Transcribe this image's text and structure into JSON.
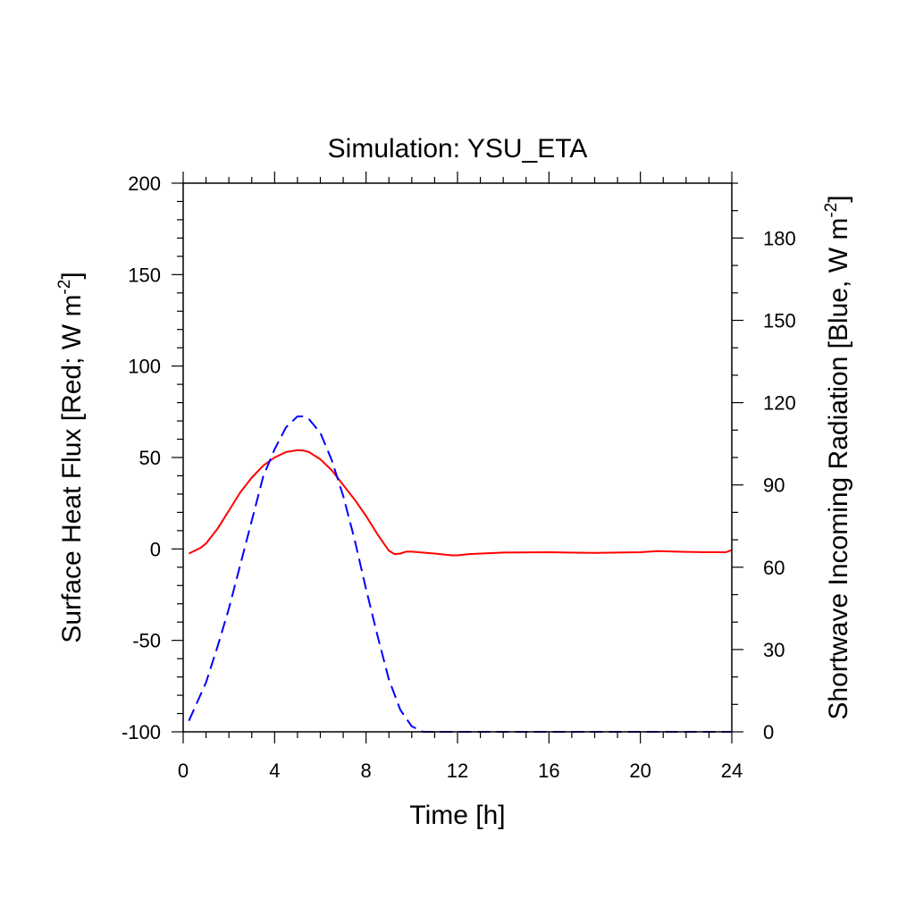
{
  "chart_data": {
    "type": "line",
    "title": "Simulation: YSU_ETA",
    "xlabel": "Time [h]",
    "ylabel_left": {
      "text": "Surface Heat Flux [Red; W m",
      "sup": "-2",
      "close": "]"
    },
    "ylabel_right": {
      "text": "Shortwave Incoming Radiation [Blue, W m",
      "sup": "-2",
      "close": "]"
    },
    "xlim": [
      0,
      24
    ],
    "ylim_left": [
      -100,
      200
    ],
    "ylim_right": [
      0,
      200
    ],
    "xticks": [
      0,
      4,
      8,
      12,
      16,
      20,
      24
    ],
    "yticks_left": [
      -100,
      -50,
      0,
      50,
      100,
      150,
      200
    ],
    "yticks_right": [
      0,
      30,
      60,
      90,
      120,
      150,
      180
    ],
    "grid": false,
    "series": [
      {
        "axis": "left",
        "color": "#ff0000",
        "style": "solid",
        "x": [
          0.25,
          0.5,
          0.75,
          1.0,
          1.5,
          2.0,
          2.5,
          3.0,
          3.5,
          4.0,
          4.5,
          5.0,
          5.25,
          5.5,
          6.0,
          6.5,
          7.0,
          7.5,
          8.0,
          8.5,
          9.0,
          9.25,
          9.5,
          9.75,
          10.0,
          11.0,
          11.75,
          12.0,
          12.5,
          14.0,
          16.0,
          18.0,
          20.0,
          20.75,
          22.0,
          23.0,
          23.75,
          24.0
        ],
        "y": [
          -2.5,
          -1,
          0.5,
          3,
          11,
          21,
          31,
          39,
          45.5,
          50,
          53,
          54,
          53.8,
          53,
          49,
          43,
          35,
          27,
          18,
          8,
          -1,
          -2.8,
          -2.5,
          -1.5,
          -1.5,
          -2.5,
          -3.5,
          -3.5,
          -2.8,
          -2,
          -1.8,
          -2.2,
          -1.8,
          -1.2,
          -1.6,
          -1.8,
          -1.8,
          -0.5
        ]
      },
      {
        "axis": "right",
        "color": "#0000ff",
        "style": "dashed",
        "x": [
          0.25,
          1.0,
          1.5,
          2.0,
          2.5,
          3.0,
          3.5,
          4.0,
          4.5,
          5.0,
          5.25,
          5.5,
          6.0,
          6.5,
          7.0,
          7.5,
          8.0,
          8.5,
          9.0,
          9.5,
          10.0,
          10.5,
          12.0,
          16.0,
          20.0,
          24.0
        ],
        "y": [
          4,
          18,
          31,
          45,
          61,
          77,
          93,
          103,
          111,
          115,
          115,
          114,
          109,
          99,
          86,
          70,
          52,
          35,
          19,
          8,
          2,
          0,
          0,
          0,
          0,
          0
        ]
      }
    ]
  }
}
